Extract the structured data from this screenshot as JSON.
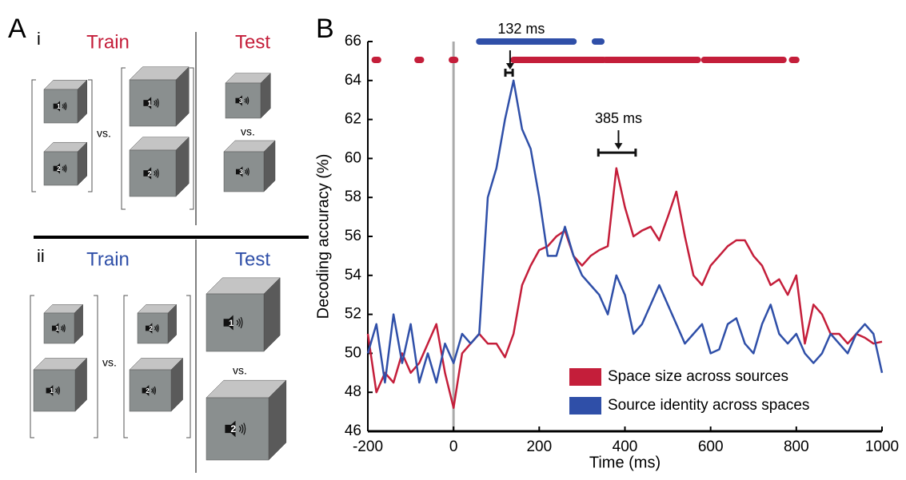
{
  "panel_a": {
    "letter": "A",
    "sections": [
      {
        "numeral": "i",
        "train": "Train",
        "test": "Test",
        "color": "#c41e3a",
        "vs": [
          "vs.",
          "vs."
        ],
        "cubes": [
          "1",
          "2",
          "1",
          "2",
          "3",
          "3"
        ]
      },
      {
        "numeral": "ii",
        "train": "Train",
        "test": "Test",
        "color": "#2f4fa8",
        "vs": [
          "vs.",
          "vs."
        ],
        "cubes": [
          "1",
          "1",
          "2",
          "2",
          "1",
          "2"
        ]
      }
    ]
  },
  "chart_data": {
    "type": "line",
    "letter": "B",
    "x_label": "Time (ms)",
    "y_label": "Decoding accuracy (%)",
    "x": [
      -200,
      -180,
      -160,
      -140,
      -120,
      -100,
      -80,
      -60,
      -40,
      -20,
      0,
      20,
      40,
      60,
      80,
      100,
      120,
      140,
      160,
      180,
      200,
      220,
      240,
      260,
      280,
      300,
      320,
      340,
      360,
      380,
      400,
      420,
      440,
      460,
      480,
      500,
      520,
      540,
      560,
      580,
      600,
      620,
      640,
      660,
      680,
      700,
      720,
      740,
      760,
      780,
      800,
      820,
      840,
      860,
      880,
      900,
      920,
      940,
      960,
      980,
      1000
    ],
    "series": [
      {
        "name": "Space size across sources",
        "color": "#c41e3a",
        "values": [
          51,
          48,
          49,
          48.5,
          50,
          49,
          49.5,
          50.5,
          51.5,
          49,
          47.2,
          50,
          50.5,
          51,
          50.5,
          50.5,
          49.8,
          51,
          53.5,
          54.5,
          55.3,
          55.5,
          56,
          56.3,
          55,
          54.5,
          55,
          55.3,
          55.5,
          59.5,
          57.5,
          56,
          56.3,
          56.5,
          55.8,
          57,
          58.3,
          56,
          54,
          53.5,
          54.5,
          55,
          55.5,
          55.8,
          55.8,
          55,
          54.5,
          53.5,
          53.8,
          53,
          54,
          50.5,
          52.5,
          52,
          51,
          51,
          50.5,
          51,
          50.8,
          50.5,
          50.6
        ],
        "significant_intervals": [
          [
            -184,
            -176
          ],
          [
            -84,
            -76
          ],
          [
            -4,
            4
          ],
          [
            140,
            350
          ],
          [
            355,
            570
          ],
          [
            585,
            770
          ],
          [
            790,
            800
          ]
        ]
      },
      {
        "name": "Source identity across spaces",
        "color": "#2f4fa8",
        "values": [
          50,
          51.5,
          48.5,
          52,
          49.5,
          51.5,
          48.5,
          50,
          48.5,
          50.5,
          49.5,
          51,
          50.5,
          51,
          58,
          59.5,
          62,
          64,
          61.5,
          60.5,
          58,
          55,
          55,
          56.5,
          55,
          54,
          53.5,
          53,
          52,
          54,
          53,
          51,
          51.5,
          52.5,
          53.5,
          52.5,
          51.5,
          50.5,
          51,
          51.5,
          50,
          50.2,
          51.5,
          51.8,
          50.5,
          50,
          51.5,
          52.5,
          51,
          50.5,
          51,
          50,
          49.5,
          50,
          51,
          50.5,
          50,
          51,
          51.5,
          51,
          49
        ],
        "significant_intervals": [
          [
            60,
            280
          ],
          [
            330,
            345
          ]
        ]
      }
    ],
    "annotations": [
      {
        "text": "132 ms",
        "x": 132,
        "y": 64.4,
        "ci": [
          121,
          138
        ]
      },
      {
        "text": "385 ms",
        "x": 385,
        "y": 60.3,
        "ci": [
          338,
          425
        ]
      }
    ],
    "xlim": [
      -200,
      1000
    ],
    "xticks": [
      -200,
      0,
      200,
      400,
      600,
      800,
      1000
    ],
    "ylim": [
      46,
      66
    ],
    "yticks": [
      46,
      48,
      50,
      52,
      54,
      56,
      58,
      60,
      62,
      64,
      66
    ],
    "legend": "lower right"
  }
}
